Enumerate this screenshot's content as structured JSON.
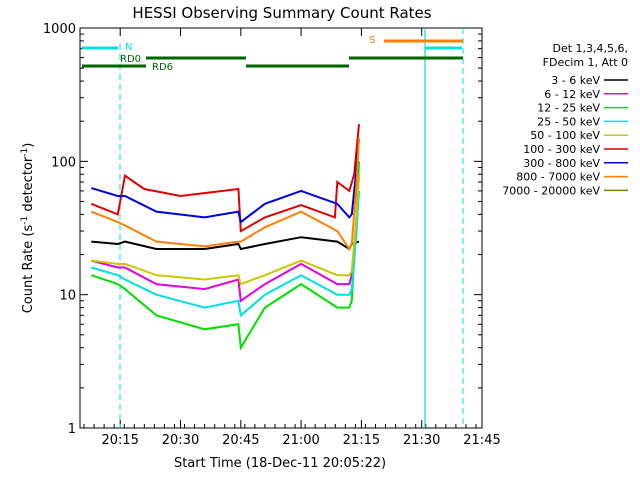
{
  "chart_data": {
    "type": "line",
    "title": "HESSI Observing Summary Count Rates",
    "xlabel": "Start Time (18-Dec-11 20:05:22)",
    "ylabel_main": "Count Rate (s",
    "ylabel_sup1": "-1",
    "ylabel_mid": " detector",
    "ylabel_sup2": "-1",
    "ylabel_end": ")",
    "yscale": "log",
    "ylim": [
      1,
      1000
    ],
    "xlim_minutes": [
      20.0833,
      21.75
    ],
    "yticks": [
      {
        "v": 1,
        "label": "1"
      },
      {
        "v": 10,
        "label": "10"
      },
      {
        "v": 100,
        "label": "100"
      },
      {
        "v": 1000,
        "label": "1000"
      }
    ],
    "xticks": [
      {
        "t": 20.25,
        "label": "20:15"
      },
      {
        "t": 20.5,
        "label": "20:30"
      },
      {
        "t": 20.75,
        "label": "20:45"
      },
      {
        "t": 21.0,
        "label": "21:00"
      },
      {
        "t": 21.25,
        "label": "21:15"
      },
      {
        "t": 21.5,
        "label": "21:30"
      },
      {
        "t": 21.75,
        "label": "21:45"
      }
    ],
    "legend": {
      "placement": "right",
      "header1": "Det 1,3,4,5,6,",
      "header2": "FDecim 1, Att 0"
    },
    "flags": {
      "n_label": "N",
      "rd0_label": "RD0",
      "rd6_label": "RD6",
      "s_label": "S",
      "cyan_color": "#00e0e0",
      "green_color": "#006400",
      "orange_color": "#ff8000"
    },
    "series": [
      {
        "name": "3 - 6 keV",
        "color": "#000000",
        "points": [
          [
            20.13,
            25
          ],
          [
            20.24,
            24
          ],
          [
            20.27,
            25
          ],
          [
            20.4,
            22
          ],
          [
            20.6,
            22
          ],
          [
            20.74,
            24
          ],
          [
            20.75,
            22
          ],
          [
            20.85,
            24
          ],
          [
            21.0,
            27
          ],
          [
            21.15,
            25
          ],
          [
            21.2,
            22
          ],
          [
            21.21,
            24
          ],
          [
            21.24,
            25
          ]
        ]
      },
      {
        "name": "6 - 12 keV",
        "color": "#e000e0",
        "points": [
          [
            20.13,
            18
          ],
          [
            20.24,
            16
          ],
          [
            20.27,
            16
          ],
          [
            20.4,
            12
          ],
          [
            20.6,
            11
          ],
          [
            20.74,
            13
          ],
          [
            20.75,
            9
          ],
          [
            20.85,
            12
          ],
          [
            21.0,
            17
          ],
          [
            21.15,
            12
          ],
          [
            21.2,
            12
          ],
          [
            21.21,
            14
          ],
          [
            21.23,
            40
          ],
          [
            21.24,
            80
          ]
        ]
      },
      {
        "name": "12 - 25 keV",
        "color": "#00e000",
        "points": [
          [
            20.13,
            14
          ],
          [
            20.24,
            12
          ],
          [
            20.27,
            11
          ],
          [
            20.4,
            7
          ],
          [
            20.6,
            5.5
          ],
          [
            20.74,
            6
          ],
          [
            20.75,
            4
          ],
          [
            20.85,
            8
          ],
          [
            21.0,
            12
          ],
          [
            21.15,
            8
          ],
          [
            21.2,
            8
          ],
          [
            21.21,
            9
          ],
          [
            21.23,
            40
          ],
          [
            21.24,
            100
          ]
        ]
      },
      {
        "name": "25 - 50 keV",
        "color": "#00e0e0",
        "points": [
          [
            20.13,
            16
          ],
          [
            20.24,
            14
          ],
          [
            20.27,
            13
          ],
          [
            20.4,
            10
          ],
          [
            20.6,
            8
          ],
          [
            20.74,
            9
          ],
          [
            20.75,
            7
          ],
          [
            20.85,
            10
          ],
          [
            21.0,
            14
          ],
          [
            21.15,
            10
          ],
          [
            21.2,
            10
          ],
          [
            21.21,
            11
          ],
          [
            21.23,
            30
          ],
          [
            21.24,
            60
          ]
        ]
      },
      {
        "name": "50 - 100 keV",
        "color": "#c8c800",
        "points": [
          [
            20.13,
            18
          ],
          [
            20.24,
            17
          ],
          [
            20.27,
            17
          ],
          [
            20.4,
            14
          ],
          [
            20.6,
            13
          ],
          [
            20.74,
            14
          ],
          [
            20.75,
            12
          ],
          [
            20.85,
            14
          ],
          [
            21.0,
            18
          ],
          [
            21.15,
            14
          ],
          [
            21.2,
            14
          ],
          [
            21.21,
            15
          ],
          [
            21.23,
            40
          ],
          [
            21.24,
            80
          ]
        ]
      },
      {
        "name": "100 - 300 keV",
        "color": "#e00000",
        "points": [
          [
            20.13,
            48
          ],
          [
            20.24,
            40
          ],
          [
            20.27,
            78
          ],
          [
            20.35,
            62
          ],
          [
            20.5,
            55
          ],
          [
            20.74,
            62
          ],
          [
            20.75,
            30
          ],
          [
            20.85,
            38
          ],
          [
            21.0,
            47
          ],
          [
            21.14,
            38
          ],
          [
            21.15,
            70
          ],
          [
            21.2,
            60
          ],
          [
            21.22,
            80
          ],
          [
            21.24,
            190
          ]
        ]
      },
      {
        "name": "300 - 800 keV",
        "color": "#0000e0",
        "points": [
          [
            20.13,
            63
          ],
          [
            20.24,
            55
          ],
          [
            20.27,
            55
          ],
          [
            20.4,
            42
          ],
          [
            20.6,
            38
          ],
          [
            20.74,
            42
          ],
          [
            20.75,
            35
          ],
          [
            20.85,
            48
          ],
          [
            21.0,
            60
          ],
          [
            21.15,
            48
          ],
          [
            21.2,
            38
          ],
          [
            21.21,
            40
          ],
          [
            21.23,
            90
          ],
          [
            21.24,
            150
          ]
        ]
      },
      {
        "name": "800 - 7000 keV",
        "color": "#ff8000",
        "points": [
          [
            20.13,
            42
          ],
          [
            20.24,
            35
          ],
          [
            20.27,
            33
          ],
          [
            20.4,
            25
          ],
          [
            20.6,
            23
          ],
          [
            20.74,
            25
          ],
          [
            20.75,
            25
          ],
          [
            20.85,
            32
          ],
          [
            21.0,
            42
          ],
          [
            21.15,
            30
          ],
          [
            21.2,
            22
          ],
          [
            21.21,
            24
          ],
          [
            21.23,
            70
          ],
          [
            21.24,
            150
          ]
        ]
      },
      {
        "name": "7000 - 20000 keV",
        "color": "#7f7f00",
        "points": []
      }
    ],
    "x_unit_note": "x values are hours of day"
  }
}
